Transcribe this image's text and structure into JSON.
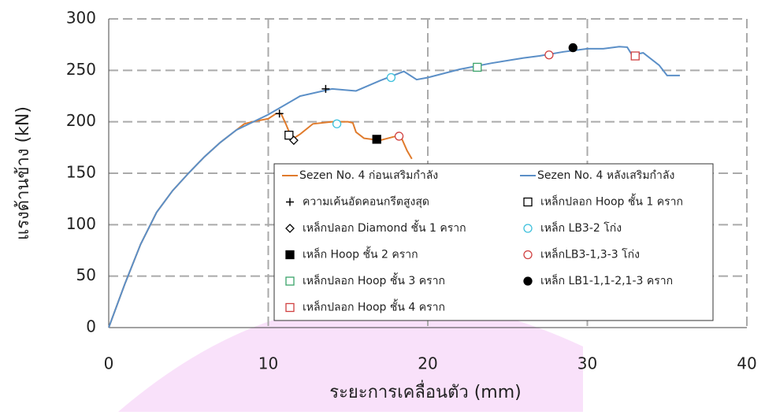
{
  "chart_data": {
    "type": "line",
    "xlabel": "ระยะการเคลื่อนตัว (mm)",
    "ylabel": "แรงด้านข้าง (kN)",
    "xlim": [
      0,
      40
    ],
    "xticks": [
      0,
      10,
      20,
      30,
      40
    ],
    "ylim": [
      0,
      300
    ],
    "yticks": [
      0,
      50,
      100,
      150,
      200,
      250,
      300
    ],
    "grid": true,
    "series": [
      {
        "name": "Sezen No. 4 ก่อนเสริมกำลัง",
        "color": "#e07b2c",
        "marker": "line",
        "x": [
          0,
          1,
          2,
          3,
          4,
          5,
          6,
          7,
          8,
          8.5,
          9,
          10,
          10.5,
          10.8,
          11.1,
          11.5,
          12,
          12.8,
          14,
          15,
          15.3,
          15.5,
          16,
          17,
          18,
          18.3,
          18.7,
          19
        ],
        "values": [
          0,
          42,
          81,
          112,
          133,
          150,
          166,
          180,
          192,
          198,
          200,
          203,
          208,
          208,
          198,
          183,
          188,
          198,
          200,
          200,
          199,
          190,
          184,
          182,
          186,
          186,
          172,
          164
        ]
      },
      {
        "name": "Sezen No. 4 หลังเสริมกำลัง",
        "color": "#5b8fc7",
        "marker": "line",
        "x": [
          0,
          1,
          2,
          3,
          4,
          5,
          6,
          7,
          8,
          10,
          12,
          14,
          15.5,
          17,
          18.5,
          19.3,
          20,
          22,
          24,
          26,
          27,
          28.5,
          30,
          31,
          32,
          32.5,
          32.8,
          33.5,
          34.5,
          35,
          35.8
        ],
        "values": [
          0,
          42,
          81,
          112,
          133,
          150,
          166,
          180,
          192,
          207,
          225,
          232,
          230,
          240,
          249,
          241,
          243,
          251,
          257,
          262,
          264,
          268,
          271,
          271,
          273,
          272.5,
          265,
          267,
          255,
          245,
          245
        ]
      },
      {
        "name": "ความเค้นอัดคอนกรีตสูงสุด",
        "color": "#000000",
        "marker": "plus",
        "x": [
          10.7,
          13.6
        ],
        "values": [
          208,
          232
        ]
      },
      {
        "name": "เหล็กปลอก Hoop ชั้น 1 คราก",
        "color": "#000000",
        "marker": "square",
        "x": [
          11.3
        ],
        "values": [
          187
        ]
      },
      {
        "name": "เหล็กปลอก Diamond ชั้น 1 คราก",
        "color": "#000000",
        "marker": "diamond",
        "x": [
          11.6
        ],
        "values": [
          182
        ]
      },
      {
        "name": "เหล็ก LB3-2 โก่ง",
        "color": "#3cc0dc",
        "marker": "circle",
        "x": [
          14.3,
          17.7
        ],
        "values": [
          198,
          243
        ]
      },
      {
        "name": "เหล็ก Hoop ชั้น 2 คราก",
        "color": "#000000",
        "marker": "filled-square",
        "x": [
          16.8
        ],
        "values": [
          183
        ]
      },
      {
        "name": "เหล็กLB3-1,3-3 โก่ง",
        "color": "#d04040",
        "marker": "circle",
        "x": [
          18.2,
          27.6
        ],
        "values": [
          186,
          265
        ]
      },
      {
        "name": "เหล็กปลอก Hoop ชั้น 3 คราก",
        "color": "#3aa36a",
        "marker": "square",
        "x": [
          23.1
        ],
        "values": [
          253
        ]
      },
      {
        "name": "เหล็ก LB1-1,1-2,1-3 คราก",
        "color": "#000000",
        "marker": "filled-circle",
        "x": [
          29.1
        ],
        "values": [
          272
        ]
      },
      {
        "name": "เหล็กปลอก Hoop ชั้น 4 คราก",
        "color": "#d04040",
        "marker": "square",
        "x": [
          33.0
        ],
        "values": [
          264
        ]
      }
    ]
  }
}
